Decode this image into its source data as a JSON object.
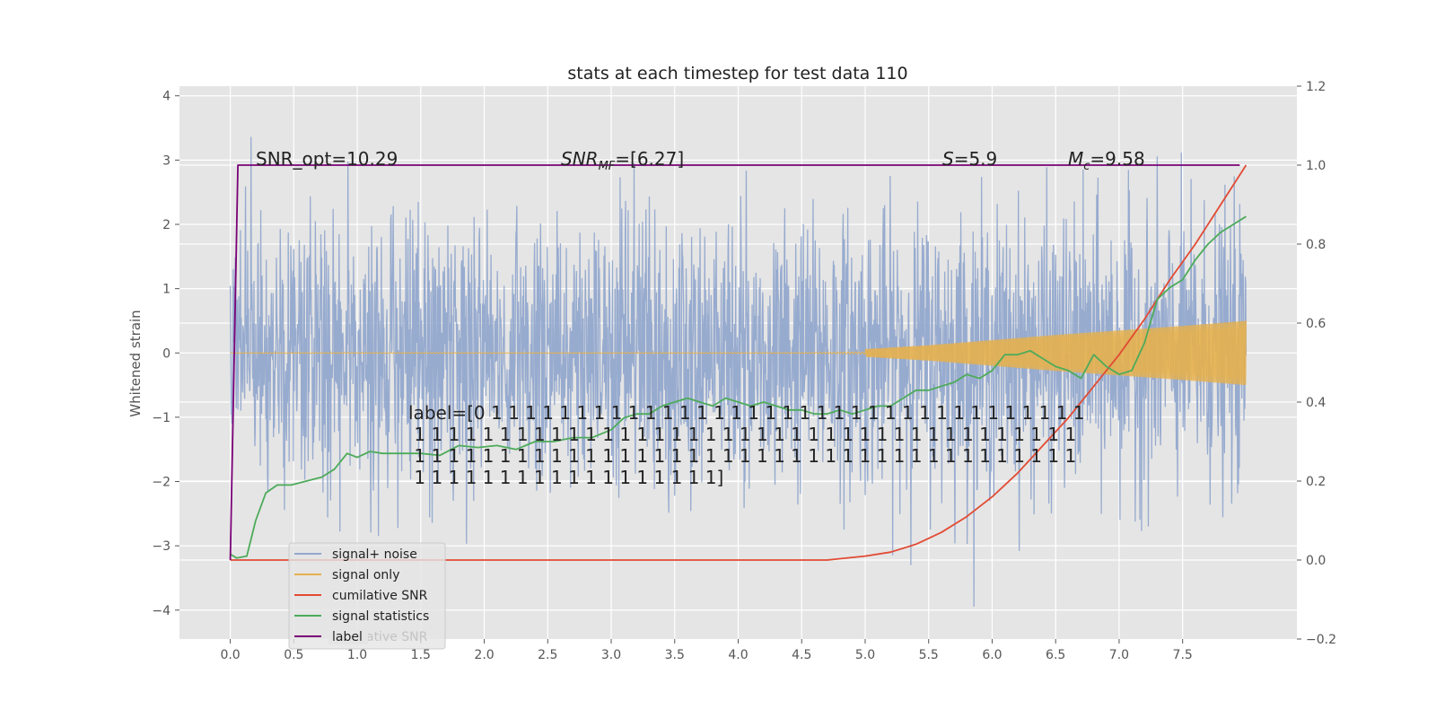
{
  "chart_data": {
    "type": "line",
    "title": "stats at each timestep for test data 110",
    "ylabel": "Whitened strain",
    "xlabel": "",
    "xlim": [
      -0.4,
      8.4
    ],
    "ylim": [
      -4.45,
      4.15
    ],
    "y2lim": [
      -0.2,
      1.2
    ],
    "xticks": [
      "0.0",
      "0.5",
      "1.0",
      "1.5",
      "2.0",
      "2.5",
      "3.0",
      "3.5",
      "4.0",
      "4.5",
      "5.0",
      "5.5",
      "6.0",
      "6.5",
      "7.0",
      "7.5"
    ],
    "yticks": [
      "4",
      "3",
      "2",
      "1",
      "0",
      "−1",
      "−2",
      "−3",
      "−4"
    ],
    "y2ticks": [
      "1.2",
      "1.0",
      "0.8",
      "0.6",
      "0.4",
      "0.2",
      "0.0",
      "−0.2"
    ],
    "grid": true,
    "legend_position": "lower-left",
    "annotations": {
      "snr_opt": "SNR_opt=10.29",
      "snr_mf_main": "SNR",
      "snr_mf_sub": "MF",
      "snr_mf_rest": "=[6.27]",
      "s_main": "S",
      "s_rest": "=5.9",
      "mc_main": "M",
      "mc_sub": "c",
      "mc_rest": "=9.58",
      "label_lines": [
        "label=[0 1 1 1 1 1 1 1 1 1 1 1 1 1 1 1 1 1 1 1 1 1 1 1 1 1 1 1 1 1 1 1 1 1 1 1",
        " 1 1 1 1 1 1 1 1 1 1 1 1 1 1 1 1 1 1 1 1 1 1 1 1 1 1 1 1 1 1 1 1 1 1 1 1 1 1 1",
        " 1 1 1 1 1 1 1 1 1 1 1 1 1 1 1 1 1 1 1 1 1 1 1 1 1 1 1 1 1 1 1 1 1 1 1 1 1 1 1",
        " 1 1 1 1 1 1 1 1 1 1 1 1 1 1 1 1 1 1]"
      ]
    },
    "legend_ghost_text": "cumilative SNR",
    "series": [
      {
        "name": "signal+ noise",
        "color": "#92a8cd",
        "axis": "left",
        "x_range": [
          0,
          8
        ],
        "amplitude_envelope": [
          1.6,
          3.5
        ],
        "description_values": "noisy whitened strain, approx. uniform spread between -3.7 and 3.7"
      },
      {
        "name": "signal only",
        "color": "#e6b04d",
        "axis": "left",
        "x_range": [
          0,
          8
        ],
        "x": [
          0,
          4.5,
          5.0,
          5.5,
          6.0,
          6.5,
          7.0,
          7.5,
          8.0
        ],
        "values": [
          0.02,
          0.02,
          0.06,
          0.12,
          0.2,
          0.28,
          0.35,
          0.42,
          0.5
        ]
      },
      {
        "name": "cumilative SNR",
        "color": "#e24a33",
        "axis": "right",
        "x": [
          0,
          4.7,
          5.0,
          5.2,
          5.4,
          5.6,
          5.8,
          6.0,
          6.2,
          6.4,
          6.6,
          6.8,
          7.0,
          7.2,
          7.4,
          7.6,
          7.8,
          8.0
        ],
        "values": [
          0.0,
          0.0,
          0.01,
          0.02,
          0.04,
          0.07,
          0.11,
          0.16,
          0.22,
          0.29,
          0.36,
          0.44,
          0.52,
          0.61,
          0.71,
          0.8,
          0.9,
          1.0
        ]
      },
      {
        "name": "signal statistics",
        "color": "#4dab5a",
        "axis": "right",
        "x": [
          0.0,
          0.05,
          0.13,
          0.2,
          0.28,
          0.37,
          0.48,
          0.6,
          0.72,
          0.82,
          0.92,
          1.0,
          1.1,
          1.2,
          1.35,
          1.5,
          1.65,
          1.8,
          1.95,
          2.1,
          2.25,
          2.4,
          2.55,
          2.7,
          2.85,
          3.0,
          3.1,
          3.2,
          3.3,
          3.4,
          3.5,
          3.6,
          3.7,
          3.8,
          3.9,
          4.0,
          4.1,
          4.2,
          4.3,
          4.4,
          4.5,
          4.6,
          4.7,
          4.8,
          4.9,
          5.0,
          5.1,
          5.2,
          5.3,
          5.4,
          5.5,
          5.6,
          5.7,
          5.8,
          5.9,
          6.0,
          6.1,
          6.2,
          6.3,
          6.4,
          6.5,
          6.6,
          6.7,
          6.8,
          6.9,
          7.0,
          7.1,
          7.2,
          7.3,
          7.4,
          7.5,
          7.6,
          7.7,
          7.8,
          7.9,
          8.0
        ],
        "values": [
          0.015,
          0.005,
          0.01,
          0.1,
          0.17,
          0.19,
          0.19,
          0.2,
          0.21,
          0.23,
          0.27,
          0.26,
          0.275,
          0.27,
          0.27,
          0.27,
          0.265,
          0.29,
          0.285,
          0.29,
          0.28,
          0.3,
          0.3,
          0.31,
          0.31,
          0.33,
          0.36,
          0.37,
          0.37,
          0.39,
          0.4,
          0.41,
          0.4,
          0.39,
          0.41,
          0.4,
          0.39,
          0.4,
          0.39,
          0.38,
          0.38,
          0.37,
          0.37,
          0.38,
          0.37,
          0.38,
          0.39,
          0.39,
          0.41,
          0.43,
          0.43,
          0.44,
          0.45,
          0.47,
          0.46,
          0.48,
          0.52,
          0.52,
          0.53,
          0.51,
          0.49,
          0.48,
          0.46,
          0.52,
          0.49,
          0.47,
          0.48,
          0.55,
          0.66,
          0.69,
          0.71,
          0.76,
          0.8,
          0.83,
          0.85,
          0.87
        ]
      },
      {
        "name": "label",
        "color": "#7a0177",
        "axis": "right",
        "x": [
          0.0,
          0.06,
          7.95
        ],
        "values": [
          0.0,
          1.0,
          1.0
        ]
      }
    ]
  }
}
